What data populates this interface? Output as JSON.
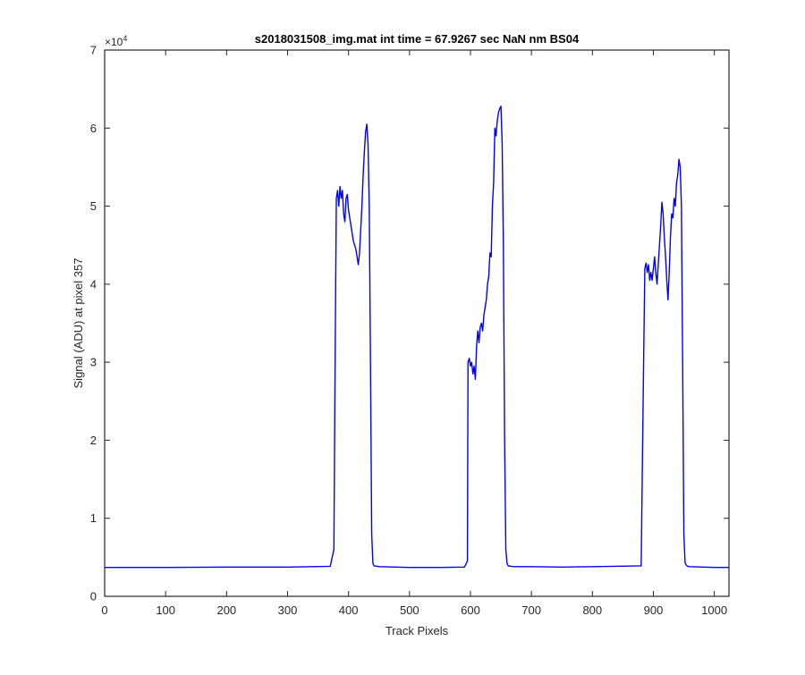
{
  "chart_data": {
    "type": "line",
    "title": "s2018031508_img.mat int time = 67.9267 sec  NaN nm BS04",
    "xlabel": "Track Pixels",
    "ylabel": "Signal (ADU) at pixel 357",
    "xlim": [
      0,
      1024
    ],
    "ylim": [
      0,
      70000
    ],
    "x_ticks": [
      0,
      100,
      200,
      300,
      400,
      500,
      600,
      700,
      800,
      900,
      1000
    ],
    "x_tick_labels": [
      "0",
      "100",
      "200",
      "300",
      "400",
      "500",
      "600",
      "700",
      "800",
      "900",
      "1000"
    ],
    "y_ticks": [
      0,
      10000,
      20000,
      30000,
      40000,
      50000,
      60000,
      70000
    ],
    "y_tick_labels": [
      "0",
      "1",
      "2",
      "3",
      "4",
      "5",
      "6",
      "7"
    ],
    "y_exponent_label": "×10",
    "y_exponent_power": "4",
    "grid": false,
    "line_color": "#0000ff",
    "series": [
      {
        "x": [
          0,
          100,
          200,
          300,
          370,
          376,
          378,
          380,
          382,
          384,
          386,
          388,
          390,
          392,
          394,
          396,
          398,
          400,
          402,
          404,
          406,
          408,
          410,
          412,
          414,
          416,
          418,
          420,
          422,
          424,
          426,
          428,
          430,
          432,
          434,
          436,
          438,
          440,
          442,
          450,
          500,
          550,
          590,
          595,
          596,
          598,
          600,
          602,
          604,
          606,
          608,
          610,
          612,
          614,
          616,
          618,
          620,
          622,
          624,
          626,
          628,
          630,
          632,
          634,
          636,
          638,
          640,
          642,
          644,
          646,
          648,
          650,
          652,
          654,
          656,
          658,
          660,
          662,
          670,
          700,
          750,
          800,
          880,
          884,
          886,
          888,
          890,
          892,
          894,
          896,
          898,
          900,
          902,
          904,
          906,
          908,
          910,
          912,
          914,
          916,
          918,
          920,
          922,
          924,
          926,
          928,
          930,
          932,
          934,
          936,
          938,
          940,
          942,
          944,
          946,
          948,
          950,
          952,
          954,
          956,
          960,
          1000,
          1024
        ],
        "y": [
          3700,
          3700,
          3750,
          3750,
          3850,
          6000,
          30000,
          51000,
          52000,
          50000,
          52500,
          51000,
          52000,
          49000,
          48000,
          51000,
          51500,
          49500,
          48500,
          47500,
          46500,
          45500,
          45000,
          44500,
          43500,
          42500,
          44000,
          47000,
          50000,
          54000,
          57000,
          59500,
          60500,
          58000,
          50000,
          30000,
          8000,
          4200,
          3900,
          3800,
          3700,
          3700,
          3750,
          4500,
          30000,
          30500,
          29500,
          30000,
          28500,
          29500,
          27800,
          32000,
          34000,
          32500,
          34500,
          35000,
          34000,
          36000,
          37000,
          38000,
          40000,
          41000,
          44000,
          43500,
          50000,
          53000,
          60000,
          59000,
          61000,
          62000,
          62500,
          62800,
          58000,
          45000,
          20000,
          6000,
          4200,
          3900,
          3800,
          3800,
          3750,
          3800,
          3900,
          30000,
          42000,
          42700,
          41500,
          42500,
          40500,
          41500,
          40500,
          42000,
          43500,
          41500,
          40000,
          42500,
          45000,
          47500,
          50500,
          49000,
          46000,
          43500,
          40500,
          38000,
          41500,
          46000,
          49000,
          48500,
          51000,
          50000,
          53000,
          54000,
          56000,
          55000,
          50000,
          30000,
          8000,
          4300,
          4000,
          3850,
          3800,
          3700,
          3700
        ]
      }
    ]
  }
}
